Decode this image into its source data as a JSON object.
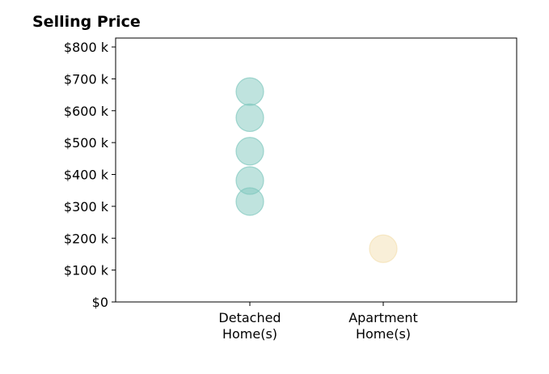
{
  "chart_data": {
    "type": "scatter",
    "title": "Selling Price",
    "categories": [
      "Detached\nHome(s)",
      "Apartment\nHome(s)"
    ],
    "series": [
      {
        "category_index": 0,
        "color": "#7fc7bd",
        "values": [
          660000,
          578000,
          473000,
          381000,
          315000
        ]
      },
      {
        "category_index": 1,
        "color": "#f3dfb1",
        "values": [
          167000
        ]
      }
    ],
    "yticks": [
      "$0",
      "$100 k",
      "$200 k",
      "$300 k",
      "$400 k",
      "$500 k",
      "$600 k",
      "$700 k",
      "$800 k"
    ],
    "ytick_values": [
      0,
      100000,
      200000,
      300000,
      400000,
      500000,
      600000,
      700000,
      800000
    ],
    "ylim": [
      0,
      828000
    ],
    "grid": false
  }
}
